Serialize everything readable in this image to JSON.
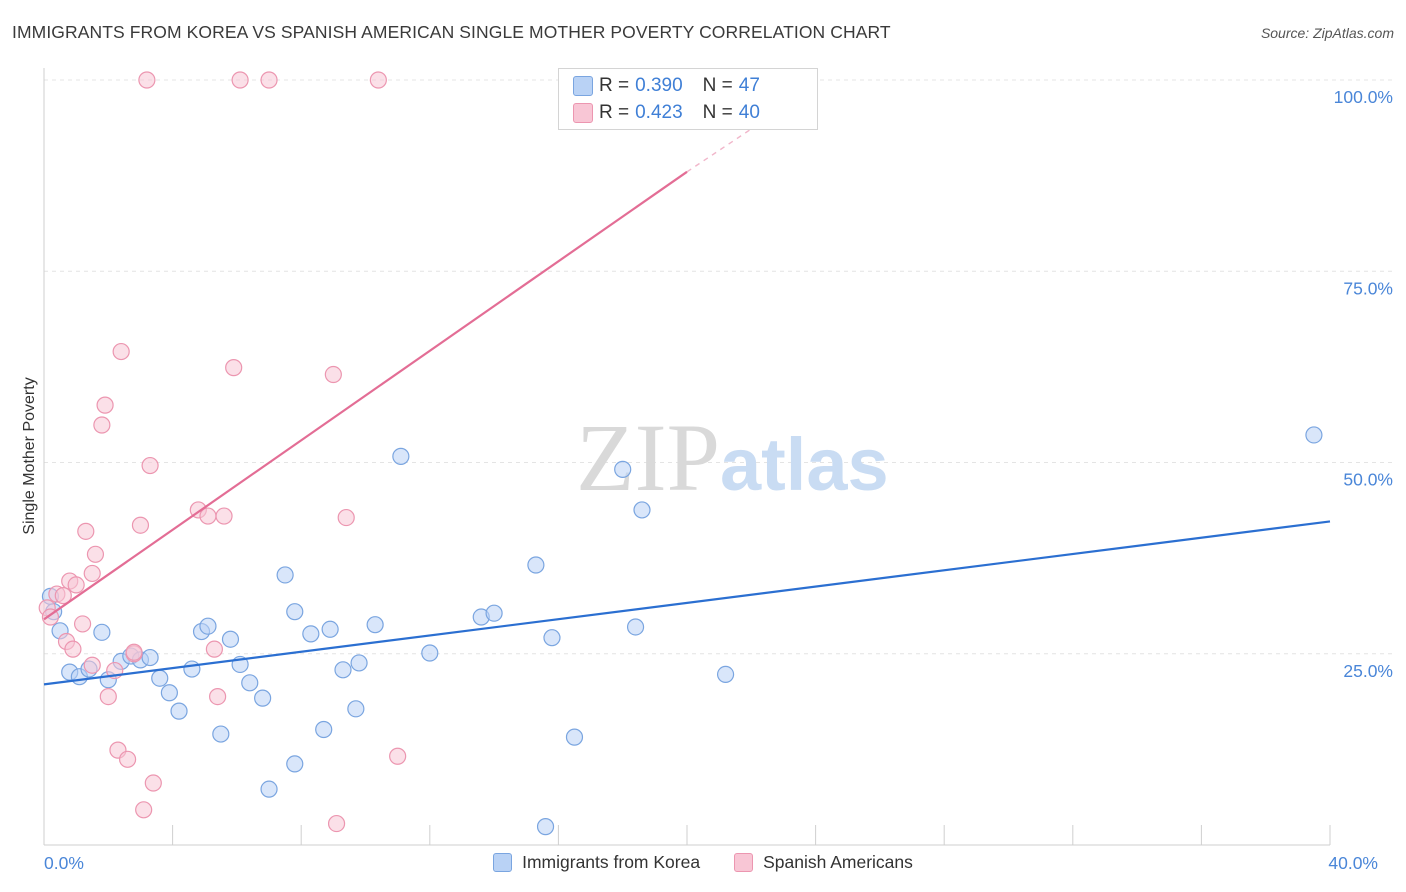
{
  "header": {
    "title": "IMMIGRANTS FROM KOREA VS SPANISH AMERICAN SINGLE MOTHER POVERTY CORRELATION CHART",
    "source": "Source: ZipAtlas.com"
  },
  "watermark": {
    "zip": "ZIP",
    "atlas": "atlas"
  },
  "legend_stats": [
    {
      "r_label": "R =",
      "r_value": "0.390",
      "n_label": "N =",
      "n_value": "47",
      "fill": "#b9d2f5",
      "stroke": "#7aa5e0"
    },
    {
      "r_label": "R =",
      "r_value": "0.423",
      "n_label": "N =",
      "n_value": "40",
      "fill": "#f8c6d5",
      "stroke": "#ec96b0"
    }
  ],
  "bottom_legend": [
    {
      "label": "Immigrants from Korea",
      "fill": "#b9d2f5",
      "stroke": "#7aa5e0"
    },
    {
      "label": "Spanish Americans",
      "fill": "#f8c6d5",
      "stroke": "#ec96b0"
    }
  ],
  "chart_data": {
    "type": "scatter",
    "title": "IMMIGRANTS FROM KOREA VS SPANISH AMERICAN SINGLE MOTHER POVERTY CORRELATION CHART",
    "xlabel": "",
    "ylabel": "Single Mother Poverty",
    "xlim": [
      0,
      40
    ],
    "ylim": [
      0,
      100
    ],
    "x_tick_labels": [
      {
        "value": 0,
        "label": "0.0%"
      },
      {
        "value": 40,
        "label": "40.0%"
      }
    ],
    "y_tick_labels": [
      {
        "value": 25,
        "label": "25.0%"
      },
      {
        "value": 50,
        "label": "50.0%"
      },
      {
        "value": 75,
        "label": "75.0%"
      },
      {
        "value": 100,
        "label": "100.0%"
      }
    ],
    "grid": true,
    "legend_position": "top-center",
    "series": [
      {
        "name": "Immigrants from Korea",
        "color": "#7aa5e0",
        "fill": "#b9d2f5",
        "line_color": "#2b6fd1",
        "trend": {
          "x": [
            0,
            40
          ],
          "y": [
            21.0,
            42.3
          ]
        },
        "points": [
          [
            0.2,
            32.5
          ],
          [
            0.3,
            30.5
          ],
          [
            0.5,
            28.0
          ],
          [
            0.8,
            22.6
          ],
          [
            1.1,
            22.0
          ],
          [
            1.4,
            23.0
          ],
          [
            1.8,
            27.8
          ],
          [
            2.0,
            21.6
          ],
          [
            2.4,
            24.0
          ],
          [
            2.7,
            24.7
          ],
          [
            3.0,
            24.2
          ],
          [
            3.3,
            24.5
          ],
          [
            3.6,
            21.8
          ],
          [
            3.9,
            19.9
          ],
          [
            4.2,
            17.5
          ],
          [
            4.6,
            23.0
          ],
          [
            4.9,
            27.9
          ],
          [
            5.1,
            28.6
          ],
          [
            5.5,
            14.5
          ],
          [
            5.8,
            26.9
          ],
          [
            6.1,
            23.6
          ],
          [
            6.4,
            21.2
          ],
          [
            6.8,
            19.2
          ],
          [
            7.0,
            7.3
          ],
          [
            7.5,
            35.3
          ],
          [
            7.8,
            30.5
          ],
          [
            7.8,
            10.6
          ],
          [
            8.3,
            27.6
          ],
          [
            8.7,
            15.1
          ],
          [
            8.9,
            28.2
          ],
          [
            9.3,
            22.9
          ],
          [
            9.7,
            17.8
          ],
          [
            9.8,
            23.8
          ],
          [
            10.3,
            28.8
          ],
          [
            11.1,
            50.8
          ],
          [
            12.0,
            25.1
          ],
          [
            13.6,
            29.8
          ],
          [
            14.0,
            30.3
          ],
          [
            15.3,
            36.6
          ],
          [
            15.6,
            2.4
          ],
          [
            15.8,
            27.1
          ],
          [
            16.5,
            14.1
          ],
          [
            18.0,
            49.1
          ],
          [
            18.4,
            28.5
          ],
          [
            18.6,
            43.8
          ],
          [
            21.2,
            22.3
          ],
          [
            39.5,
            53.6
          ]
        ]
      },
      {
        "name": "Spanish Americans",
        "color": "#ec96b0",
        "fill": "#f8c6d5",
        "line_color": "#e36d95",
        "trend": {
          "x": [
            0,
            20
          ],
          "y": [
            29.5,
            88.0
          ]
        },
        "trend_extension": {
          "x": [
            20,
            22.5
          ],
          "y": [
            88.0,
            95.0
          ]
        },
        "points": [
          [
            0.1,
            31.0
          ],
          [
            0.2,
            29.8
          ],
          [
            0.4,
            32.8
          ],
          [
            0.6,
            32.6
          ],
          [
            0.7,
            26.6
          ],
          [
            0.8,
            34.5
          ],
          [
            0.9,
            25.6
          ],
          [
            1.0,
            34.0
          ],
          [
            1.3,
            41.0
          ],
          [
            1.5,
            23.5
          ],
          [
            1.5,
            35.5
          ],
          [
            1.6,
            38.0
          ],
          [
            1.8,
            54.9
          ],
          [
            1.9,
            57.5
          ],
          [
            2.0,
            19.4
          ],
          [
            2.2,
            22.8
          ],
          [
            2.3,
            12.4
          ],
          [
            2.4,
            64.5
          ],
          [
            2.6,
            11.2
          ],
          [
            2.8,
            25.0
          ],
          [
            3.0,
            41.8
          ],
          [
            3.1,
            4.6
          ],
          [
            3.2,
            100.0
          ],
          [
            3.3,
            49.6
          ],
          [
            3.4,
            8.1
          ],
          [
            4.8,
            43.8
          ],
          [
            5.1,
            43.0
          ],
          [
            5.3,
            25.6
          ],
          [
            5.4,
            19.4
          ],
          [
            5.6,
            43.0
          ],
          [
            5.9,
            62.4
          ],
          [
            6.1,
            100.0
          ],
          [
            7.0,
            100.0
          ],
          [
            9.0,
            61.5
          ],
          [
            9.1,
            2.8
          ],
          [
            9.4,
            42.8
          ],
          [
            10.4,
            100.0
          ],
          [
            11.0,
            11.6
          ],
          [
            2.8,
            25.2
          ],
          [
            1.2,
            28.9
          ]
        ]
      }
    ]
  }
}
